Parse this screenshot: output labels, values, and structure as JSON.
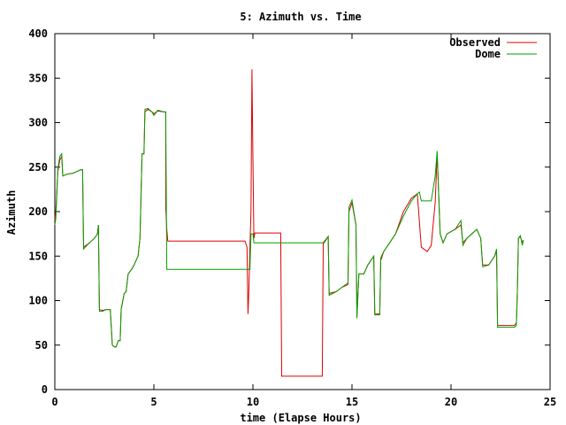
{
  "chart_data": {
    "type": "line",
    "title": "5: Azimuth vs. Time",
    "xlabel": "time (Elapse Hours)",
    "ylabel": "Azimuth",
    "xlim": [
      0,
      25
    ],
    "ylim": [
      0,
      400
    ],
    "xticks": [
      0,
      5,
      10,
      15,
      20,
      25
    ],
    "yticks": [
      0,
      50,
      100,
      150,
      200,
      250,
      300,
      350,
      400
    ],
    "legend_position": "top-right",
    "grid": false,
    "series": [
      {
        "name": "Observed",
        "color": "#dd0000",
        "points": [
          [
            0.0,
            190
          ],
          [
            0.05,
            200
          ],
          [
            0.15,
            245
          ],
          [
            0.25,
            258
          ],
          [
            0.35,
            262
          ],
          [
            0.4,
            240
          ],
          [
            0.6,
            242
          ],
          [
            0.9,
            243
          ],
          [
            1.1,
            245
          ],
          [
            1.3,
            247
          ],
          [
            1.4,
            247
          ],
          [
            1.45,
            160
          ],
          [
            1.7,
            164
          ],
          [
            2.0,
            170
          ],
          [
            2.15,
            175
          ],
          [
            2.2,
            185
          ],
          [
            2.25,
            90
          ],
          [
            2.4,
            89
          ],
          [
            2.6,
            90
          ],
          [
            2.8,
            90
          ],
          [
            2.9,
            50
          ],
          [
            3.0,
            48
          ],
          [
            3.1,
            48
          ],
          [
            3.2,
            55
          ],
          [
            3.3,
            55
          ],
          [
            3.35,
            90
          ],
          [
            3.5,
            108
          ],
          [
            3.6,
            110
          ],
          [
            3.7,
            130
          ],
          [
            3.9,
            136
          ],
          [
            4.0,
            140
          ],
          [
            4.2,
            150
          ],
          [
            4.3,
            170
          ],
          [
            4.4,
            265
          ],
          [
            4.5,
            265
          ],
          [
            4.55,
            312
          ],
          [
            4.7,
            315
          ],
          [
            4.9,
            312
          ],
          [
            5.0,
            310
          ],
          [
            5.2,
            313
          ],
          [
            5.5,
            312
          ],
          [
            5.6,
            312
          ],
          [
            5.6,
            205
          ],
          [
            5.65,
            180
          ],
          [
            5.7,
            167
          ],
          [
            9.6,
            167
          ],
          [
            9.7,
            160
          ],
          [
            9.75,
            85
          ],
          [
            9.8,
            115
          ],
          [
            9.85,
            160
          ],
          [
            9.9,
            200
          ],
          [
            9.95,
            360
          ],
          [
            10.0,
            260
          ],
          [
            10.05,
            170
          ],
          [
            10.1,
            176
          ],
          [
            11.4,
            176
          ],
          [
            11.45,
            15
          ],
          [
            13.5,
            15
          ],
          [
            13.55,
            165
          ],
          [
            13.8,
            172
          ],
          [
            13.85,
            108
          ],
          [
            14.2,
            110
          ],
          [
            14.5,
            115
          ],
          [
            14.8,
            118
          ],
          [
            14.85,
            200
          ],
          [
            15.0,
            210
          ],
          [
            15.2,
            185
          ],
          [
            15.25,
            82
          ],
          [
            15.35,
            130
          ],
          [
            15.6,
            130
          ],
          [
            15.8,
            140
          ],
          [
            16.1,
            150
          ],
          [
            16.15,
            85
          ],
          [
            16.4,
            85
          ],
          [
            16.45,
            145
          ],
          [
            16.6,
            155
          ],
          [
            16.9,
            165
          ],
          [
            17.2,
            175
          ],
          [
            17.6,
            200
          ],
          [
            18.0,
            215
          ],
          [
            18.3,
            220
          ],
          [
            18.5,
            160
          ],
          [
            18.8,
            155
          ],
          [
            19.0,
            162
          ],
          [
            19.2,
            210
          ],
          [
            19.3,
            265
          ],
          [
            19.45,
            175
          ],
          [
            19.6,
            165
          ],
          [
            19.8,
            175
          ],
          [
            20.2,
            180
          ],
          [
            20.5,
            185
          ],
          [
            20.6,
            165
          ],
          [
            20.8,
            170
          ],
          [
            21.3,
            180
          ],
          [
            21.5,
            170
          ],
          [
            21.6,
            140
          ],
          [
            21.9,
            140
          ],
          [
            22.2,
            150
          ],
          [
            22.3,
            155
          ],
          [
            22.35,
            72
          ],
          [
            22.7,
            72
          ],
          [
            23.0,
            72
          ],
          [
            23.2,
            72
          ],
          [
            23.3,
            75
          ],
          [
            23.35,
            110
          ],
          [
            23.4,
            170
          ],
          [
            23.5,
            172
          ],
          [
            23.6,
            165
          ],
          [
            23.65,
            168
          ]
        ]
      },
      {
        "name": "Dome",
        "color": "#00a000",
        "points": [
          [
            0.0,
            185
          ],
          [
            0.05,
            192
          ],
          [
            0.15,
            248
          ],
          [
            0.25,
            262
          ],
          [
            0.35,
            265
          ],
          [
            0.4,
            240
          ],
          [
            0.6,
            242
          ],
          [
            0.9,
            243
          ],
          [
            1.1,
            245
          ],
          [
            1.3,
            247
          ],
          [
            1.4,
            247
          ],
          [
            1.45,
            158
          ],
          [
            1.7,
            164
          ],
          [
            2.0,
            170
          ],
          [
            2.15,
            175
          ],
          [
            2.2,
            185
          ],
          [
            2.25,
            88
          ],
          [
            2.4,
            88
          ],
          [
            2.6,
            90
          ],
          [
            2.8,
            90
          ],
          [
            2.9,
            50
          ],
          [
            3.0,
            48
          ],
          [
            3.1,
            48
          ],
          [
            3.2,
            55
          ],
          [
            3.3,
            55
          ],
          [
            3.35,
            90
          ],
          [
            3.5,
            108
          ],
          [
            3.6,
            110
          ],
          [
            3.7,
            130
          ],
          [
            3.9,
            136
          ],
          [
            4.0,
            140
          ],
          [
            4.2,
            150
          ],
          [
            4.3,
            170
          ],
          [
            4.4,
            265
          ],
          [
            4.5,
            265
          ],
          [
            4.55,
            315
          ],
          [
            4.7,
            316
          ],
          [
            4.9,
            312
          ],
          [
            5.0,
            308
          ],
          [
            5.2,
            314
          ],
          [
            5.5,
            312
          ],
          [
            5.6,
            312
          ],
          [
            5.65,
            135
          ],
          [
            9.85,
            135
          ],
          [
            9.9,
            175
          ],
          [
            10.0,
            175
          ],
          [
            10.05,
            165
          ],
          [
            10.1,
            165
          ],
          [
            13.6,
            165
          ],
          [
            13.8,
            172
          ],
          [
            13.85,
            106
          ],
          [
            14.2,
            110
          ],
          [
            14.5,
            115
          ],
          [
            14.8,
            120
          ],
          [
            14.85,
            205
          ],
          [
            15.0,
            213
          ],
          [
            15.2,
            185
          ],
          [
            15.25,
            80
          ],
          [
            15.35,
            130
          ],
          [
            15.6,
            130
          ],
          [
            15.8,
            140
          ],
          [
            16.1,
            150
          ],
          [
            16.15,
            84
          ],
          [
            16.4,
            84
          ],
          [
            16.45,
            148
          ],
          [
            16.6,
            155
          ],
          [
            16.9,
            165
          ],
          [
            17.2,
            175
          ],
          [
            17.6,
            195
          ],
          [
            18.0,
            212
          ],
          [
            18.3,
            220
          ],
          [
            18.4,
            222
          ],
          [
            18.5,
            212
          ],
          [
            18.8,
            212
          ],
          [
            19.0,
            212
          ],
          [
            19.2,
            240
          ],
          [
            19.3,
            268
          ],
          [
            19.45,
            175
          ],
          [
            19.6,
            165
          ],
          [
            19.8,
            175
          ],
          [
            20.2,
            180
          ],
          [
            20.5,
            190
          ],
          [
            20.6,
            162
          ],
          [
            20.8,
            170
          ],
          [
            21.3,
            180
          ],
          [
            21.5,
            170
          ],
          [
            21.6,
            138
          ],
          [
            21.9,
            140
          ],
          [
            22.2,
            150
          ],
          [
            22.3,
            158
          ],
          [
            22.35,
            70
          ],
          [
            22.7,
            70
          ],
          [
            23.0,
            70
          ],
          [
            23.2,
            70
          ],
          [
            23.3,
            72
          ],
          [
            23.35,
            110
          ],
          [
            23.4,
            170
          ],
          [
            23.5,
            173
          ],
          [
            23.6,
            162
          ],
          [
            23.65,
            168
          ]
        ]
      }
    ]
  }
}
